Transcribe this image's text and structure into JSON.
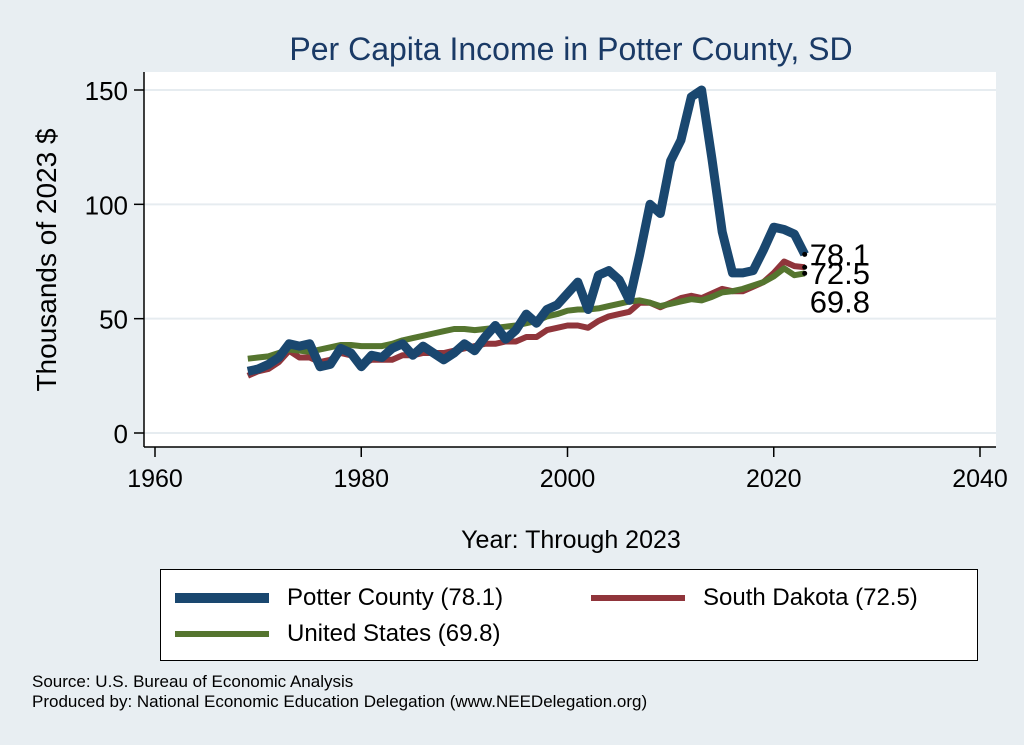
{
  "chart_data": {
    "type": "line",
    "title": "Per Capita Income in Potter County, SD",
    "xlabel": "Year: Through 2023",
    "ylabel": "Thousands of 2023 $",
    "xlim": [
      1960,
      2040
    ],
    "ylim": [
      0,
      160
    ],
    "xticks": [
      1960,
      1980,
      2000,
      2020,
      2040
    ],
    "yticks": [
      0,
      50,
      100,
      150
    ],
    "grid": true,
    "legend_placement": "bottom",
    "series": [
      {
        "name": "Potter County (78.1)",
        "color": "#1a476f",
        "end_label": "78.1",
        "x": [
          1969,
          1970,
          1971,
          1972,
          1973,
          1974,
          1975,
          1976,
          1977,
          1978,
          1979,
          1980,
          1981,
          1982,
          1983,
          1984,
          1985,
          1986,
          1987,
          1988,
          1989,
          1990,
          1991,
          1992,
          1993,
          1994,
          1995,
          1996,
          1997,
          1998,
          1999,
          2000,
          2001,
          2002,
          2003,
          2004,
          2005,
          2006,
          2007,
          2008,
          2009,
          2010,
          2011,
          2012,
          2013,
          2014,
          2015,
          2016,
          2017,
          2018,
          2019,
          2020,
          2021,
          2022,
          2023
        ],
        "y": [
          27,
          28,
          30,
          33,
          39,
          38,
          39,
          29,
          30,
          37,
          35,
          29,
          34,
          33,
          37,
          39,
          34,
          38,
          35,
          32,
          35,
          39,
          36,
          42,
          47,
          41,
          45,
          52,
          48,
          54,
          56,
          61,
          66,
          54,
          69,
          71,
          67,
          58,
          78,
          100,
          96,
          119,
          128,
          147,
          150,
          120,
          88,
          70,
          70,
          71,
          80,
          90,
          89,
          87,
          78.1
        ]
      },
      {
        "name": "South Dakota (72.5)",
        "color": "#90353b",
        "end_label": "72.5",
        "x": [
          1969,
          1970,
          1971,
          1972,
          1973,
          1974,
          1975,
          1976,
          1977,
          1978,
          1979,
          1980,
          1981,
          1982,
          1983,
          1984,
          1985,
          1986,
          1987,
          1988,
          1989,
          1990,
          1991,
          1992,
          1993,
          1994,
          1995,
          1996,
          1997,
          1998,
          1999,
          2000,
          2001,
          2002,
          2003,
          2004,
          2005,
          2006,
          2007,
          2008,
          2009,
          2010,
          2011,
          2012,
          2013,
          2014,
          2015,
          2016,
          2017,
          2018,
          2019,
          2020,
          2021,
          2022,
          2023
        ],
        "y": [
          25,
          27,
          28,
          31,
          36,
          33,
          33,
          31,
          32,
          35,
          34,
          30,
          32,
          32,
          32,
          34,
          34,
          35,
          35,
          35,
          36,
          37,
          38,
          39,
          39,
          40,
          40,
          42,
          42,
          45,
          46,
          47,
          47,
          46,
          49,
          51,
          52,
          53,
          57,
          57,
          55,
          57,
          59,
          60,
          59,
          61,
          63,
          62,
          62,
          64,
          66,
          70,
          75,
          73,
          72.5
        ]
      },
      {
        "name": "United States (69.8)",
        "color": "#55752f",
        "end_label": "69.8",
        "x": [
          1969,
          1970,
          1971,
          1972,
          1973,
          1974,
          1975,
          1976,
          1977,
          1978,
          1979,
          1980,
          1981,
          1982,
          1983,
          1984,
          1985,
          1986,
          1987,
          1988,
          1989,
          1990,
          1991,
          1992,
          1993,
          1994,
          1995,
          1996,
          1997,
          1998,
          1999,
          2000,
          2001,
          2002,
          2003,
          2004,
          2005,
          2006,
          2007,
          2008,
          2009,
          2010,
          2011,
          2012,
          2013,
          2014,
          2015,
          2016,
          2017,
          2018,
          2019,
          2020,
          2021,
          2022,
          2023
        ],
        "y": [
          32.5,
          33,
          33.5,
          35,
          36.5,
          36,
          35.5,
          36.5,
          37.5,
          38.5,
          38.5,
          38,
          38,
          38,
          39,
          40.5,
          41.5,
          42.5,
          43.5,
          44.5,
          45.5,
          45.5,
          45,
          45.5,
          46,
          46.5,
          47,
          48,
          49,
          51,
          52,
          53.5,
          54,
          54,
          54.5,
          55.5,
          56.5,
          57.5,
          58,
          57,
          55.5,
          56.5,
          57.5,
          58.5,
          58,
          59.5,
          61.5,
          62,
          63,
          64.5,
          66,
          68.5,
          72,
          69,
          69.8
        ]
      }
    ]
  },
  "legend": {
    "items": [
      {
        "label": "Potter County (78.1)",
        "color": "#1a476f"
      },
      {
        "label": "South Dakota (72.5)",
        "color": "#90353b"
      },
      {
        "label": "United States (69.8)",
        "color": "#55752f"
      }
    ]
  },
  "footer": {
    "source": "Source: U.S. Bureau of Economic Analysis",
    "produced_by": "Produced by: National Economic Education Delegation (www.NEEDelegation.org)"
  }
}
